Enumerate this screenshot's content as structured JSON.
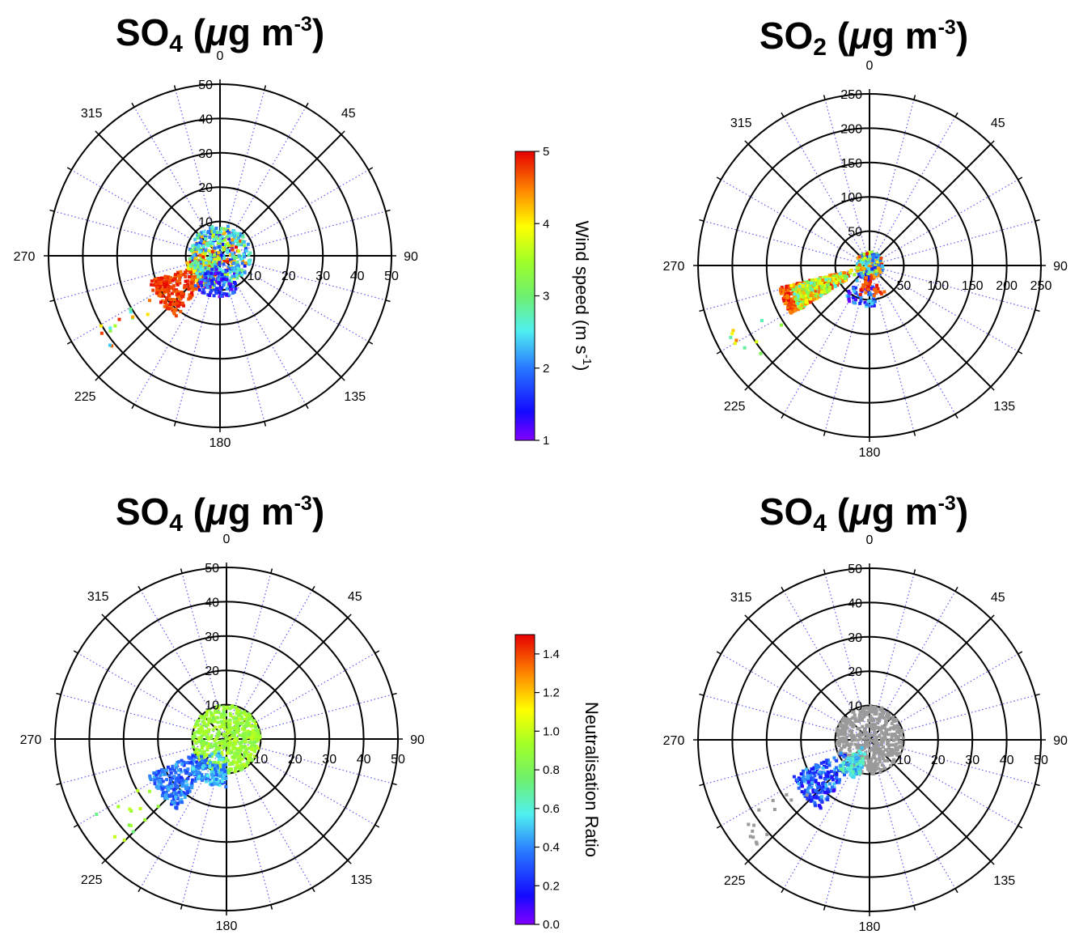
{
  "chart_data": [
    {
      "type": "scatter",
      "subtype": "polar",
      "title": {
        "species": "SO",
        "subscript": "4",
        "units_open": " (",
        "mu": "μ",
        "units_mid": "g m",
        "superscript": "-3",
        "units_close": ")"
      },
      "angle_labels": [
        "0",
        "45",
        "90",
        "135",
        "180",
        "225",
        "270",
        "315"
      ],
      "radial_ticks": [
        "10",
        "20",
        "30",
        "40",
        "50"
      ],
      "rlim": [
        0,
        50
      ],
      "color_by": "Wind speed",
      "point_clouds": [
        {
          "dir_range": [
            215,
            250
          ],
          "r_range": [
            6,
            22
          ],
          "colorval": [
            4.5,
            5
          ],
          "count": 230
        },
        {
          "dir_range": [
            190,
            260
          ],
          "r_range": [
            1,
            10
          ],
          "colorval": [
            3.5,
            5
          ],
          "count": 220
        },
        {
          "dir_range": [
            0,
            360
          ],
          "r_range": [
            0,
            8
          ],
          "colorval": [
            1.2,
            5
          ],
          "count": 320
        },
        {
          "dir_range": [
            0,
            360
          ],
          "r_range": [
            2,
            9
          ],
          "colorval": [
            2,
            3
          ],
          "count": 140
        },
        {
          "dir_range": [
            150,
            220
          ],
          "r_range": [
            3,
            12
          ],
          "colorval": [
            1,
            2.2
          ],
          "count": 90
        },
        {
          "dir_range": [
            230,
            240
          ],
          "r_range": [
            20,
            42
          ],
          "colorval": [
            2.2,
            5
          ],
          "count": 14
        }
      ]
    },
    {
      "type": "scatter",
      "subtype": "polar",
      "title": {
        "species": "SO",
        "subscript": "2",
        "units_open": " (",
        "mu": "μ",
        "units_mid": "g m",
        "superscript": "-3",
        "units_close": ")"
      },
      "angle_labels": [
        "0",
        "45",
        "90",
        "135",
        "180",
        "225",
        "270",
        "315"
      ],
      "radial_ticks": [
        "50",
        "100",
        "150",
        "200",
        "250"
      ],
      "rlim": [
        0,
        250
      ],
      "color_by": "Wind speed",
      "point_clouds": [
        {
          "dir_range": [
            238,
            256
          ],
          "r_range": [
            25,
            135
          ],
          "colorval": [
            4.4,
            5
          ],
          "count": 420
        },
        {
          "dir_range": [
            238,
            256
          ],
          "r_range": [
            20,
            120
          ],
          "colorval": [
            2.5,
            4.5
          ],
          "count": 240
        },
        {
          "dir_range": [
            0,
            360
          ],
          "r_range": [
            0,
            20
          ],
          "colorval": [
            1.5,
            5
          ],
          "count": 260
        },
        {
          "dir_range": [
            170,
            220
          ],
          "r_range": [
            10,
            60
          ],
          "colorval": [
            1,
            2.5
          ],
          "count": 70
        },
        {
          "dir_range": [
            150,
            200
          ],
          "r_range": [
            15,
            45
          ],
          "colorval": [
            4.5,
            5
          ],
          "count": 40
        },
        {
          "dir_range": [
            230,
            245
          ],
          "r_range": [
            130,
            230
          ],
          "colorval": [
            2.5,
            4.5
          ],
          "count": 10
        }
      ]
    },
    {
      "type": "scatter",
      "subtype": "polar",
      "title": {
        "species": "SO",
        "subscript": "4",
        "units_open": " (",
        "mu": "μ",
        "units_mid": "g m",
        "superscript": "-3",
        "units_close": ")"
      },
      "angle_labels": [
        "0",
        "45",
        "90",
        "135",
        "180",
        "225",
        "270",
        "315"
      ],
      "radial_ticks": [
        "10",
        "20",
        "30",
        "40",
        "50"
      ],
      "rlim": [
        0,
        50
      ],
      "color_by": "Neutralisation Ratio",
      "point_clouds": [
        {
          "dir_range": [
            0,
            360
          ],
          "r_range": [
            0,
            10
          ],
          "colorval": [
            0.8,
            1.0
          ],
          "count": 520
        },
        {
          "dir_range": [
            215,
            245
          ],
          "r_range": [
            8,
            25
          ],
          "colorval": [
            0.2,
            0.5
          ],
          "count": 220
        },
        {
          "dir_range": [
            180,
            230
          ],
          "r_range": [
            4,
            14
          ],
          "colorval": [
            0.3,
            0.6
          ],
          "count": 120
        },
        {
          "dir_range": [
            225,
            240
          ],
          "r_range": [
            22,
            45
          ],
          "colorval": [
            0.7,
            1.0
          ],
          "count": 14
        }
      ]
    },
    {
      "type": "scatter",
      "subtype": "polar",
      "title": {
        "species": "SO",
        "subscript": "4",
        "units_open": " (",
        "mu": "μ",
        "units_mid": "g m",
        "superscript": "-3",
        "units_close": ")"
      },
      "angle_labels": [
        "0",
        "45",
        "90",
        "135",
        "180",
        "225",
        "270",
        "315"
      ],
      "radial_ticks": [
        "10",
        "20",
        "30",
        "40",
        "50"
      ],
      "rlim": [
        0,
        50
      ],
      "color_by": "Neutralisation Ratio",
      "point_clouds": [
        {
          "dir_range": [
            0,
            360
          ],
          "r_range": [
            0,
            10
          ],
          "colorval": null,
          "count": 520
        },
        {
          "dir_range": [
            215,
            245
          ],
          "r_range": [
            8,
            25
          ],
          "colorval": [
            0.1,
            0.5
          ],
          "count": 220
        },
        {
          "dir_range": [
            195,
            230
          ],
          "r_range": [
            3,
            12
          ],
          "colorval": [
            0.4,
            0.7
          ],
          "count": 110
        },
        {
          "dir_range": [
            225,
            240
          ],
          "r_range": [
            22,
            45
          ],
          "colorval": null,
          "count": 14
        }
      ]
    }
  ],
  "colorbars": [
    {
      "label_main": "Wind speed (m s",
      "label_sup": "-1",
      "label_end": ")",
      "ticks": [
        "1",
        "2",
        "3",
        "4",
        "5"
      ],
      "range": [
        1,
        5
      ]
    },
    {
      "label_main": "Neutralisation Ratio",
      "label_sup": "",
      "label_end": "",
      "ticks": [
        "0.0",
        "0.2",
        "0.4",
        "0.6",
        "0.8",
        "1.0",
        "1.2",
        "1.4"
      ],
      "range": [
        0,
        1.5
      ]
    }
  ],
  "colors": {
    "outlier_gray": "#9a9a9a",
    "minor_spoke": "#5b5bf0"
  }
}
